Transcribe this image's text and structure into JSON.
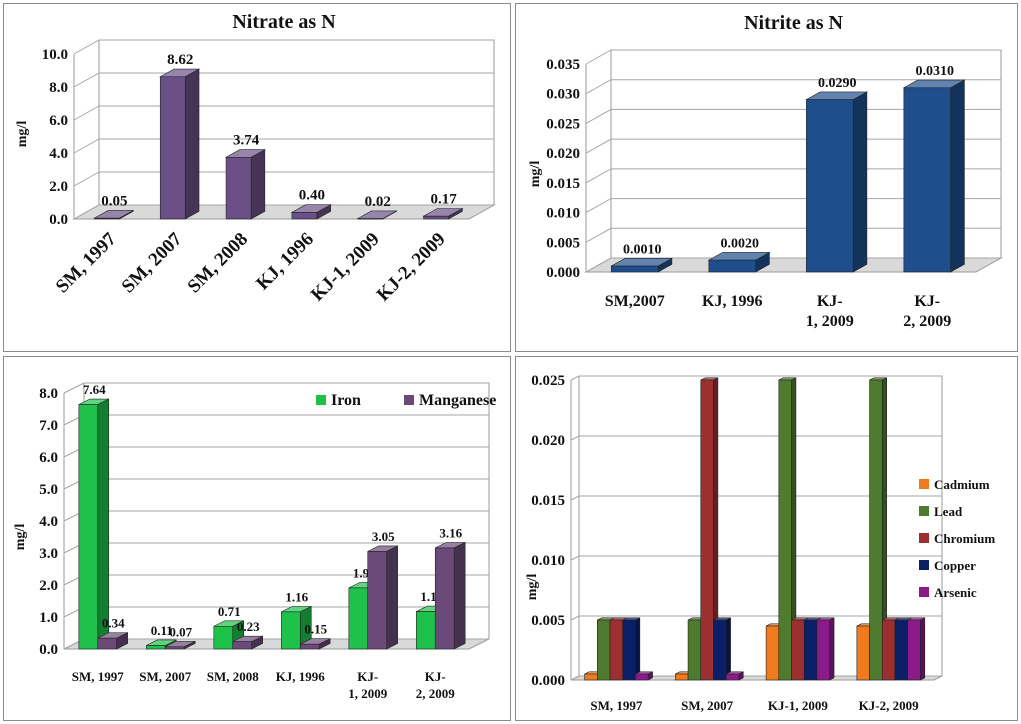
{
  "chart_data": [
    {
      "type": "bar",
      "title": "Nitrate as N",
      "ylabel": "mg/l",
      "xlabel": "",
      "ylim": [
        0,
        10
      ],
      "yticks": [
        "0.0",
        "2.0",
        "4.0",
        "6.0",
        "8.0",
        "10.0"
      ],
      "categories": [
        "SM, 1997",
        "SM, 2007",
        "SM, 2008",
        "KJ, 1996",
        "KJ-1, 2009",
        "KJ-2, 2009"
      ],
      "series": [
        {
          "values": [
            0.05,
            8.62,
            3.74,
            0.4,
            0.02,
            0.17
          ],
          "labels": [
            "0.05",
            "8.62",
            "3.74",
            "0.40",
            "0.02",
            "0.17"
          ],
          "color": "#6b5088"
        }
      ],
      "grid": true,
      "legend": "none"
    },
    {
      "type": "bar",
      "title": "Nitrite as N",
      "ylabel": "mg/l",
      "xlabel": "",
      "ylim": [
        0,
        0.035
      ],
      "yticks": [
        "0.000",
        "0.005",
        "0.010",
        "0.015",
        "0.020",
        "0.025",
        "0.030",
        "0.035"
      ],
      "categories": [
        [
          "SM,2007"
        ],
        [
          "KJ, 1996"
        ],
        [
          "KJ-",
          "1, 2009"
        ],
        [
          "KJ-",
          "2, 2009"
        ]
      ],
      "series": [
        {
          "values": [
            0.001,
            0.002,
            0.029,
            0.031
          ],
          "labels": [
            "0.0010",
            "0.0020",
            "0.0290",
            "0.0310"
          ],
          "color": "#1f4e8c"
        }
      ],
      "grid": true,
      "legend": "none"
    },
    {
      "type": "bar",
      "title": "",
      "ylabel": "mg/l",
      "xlabel": "",
      "ylim": [
        0,
        8
      ],
      "yticks": [
        "0.0",
        "1.0",
        "2.0",
        "3.0",
        "4.0",
        "5.0",
        "6.0",
        "7.0",
        "8.0"
      ],
      "categories": [
        [
          "SM, 1997"
        ],
        [
          "SM, 2007"
        ],
        [
          "SM, 2008"
        ],
        [
          "KJ, 1996"
        ],
        [
          "KJ-",
          "1, 2009"
        ],
        [
          "KJ-",
          "2, 2009"
        ]
      ],
      "series": [
        {
          "name": "Iron",
          "values": [
            7.64,
            0.11,
            0.71,
            1.16,
            1.91,
            1.17
          ],
          "labels": [
            "7.64",
            "0.11",
            "0.71",
            "1.16",
            "1.91",
            "1.17"
          ],
          "color": "#1ec24a"
        },
        {
          "name": "Manganese",
          "values": [
            0.34,
            0.07,
            0.23,
            0.15,
            3.05,
            3.16
          ],
          "labels": [
            "0.34",
            "0.07",
            "0.23",
            "0.15",
            "3.05",
            "3.16"
          ],
          "color": "#6b4a7a"
        }
      ],
      "grid": true,
      "legend": "top-right"
    },
    {
      "type": "bar",
      "title": "",
      "ylabel": "mg/l",
      "xlabel": "",
      "ylim": [
        0,
        0.025
      ],
      "yticks": [
        "0.000",
        "0.005",
        "0.010",
        "0.015",
        "0.020",
        "0.025"
      ],
      "categories": [
        [
          "SM, 1997"
        ],
        [
          "SM, 2007"
        ],
        [
          "KJ-1, 2009"
        ],
        [
          "KJ-2, 2009"
        ]
      ],
      "series": [
        {
          "name": "Cadmium",
          "values": [
            0.0005,
            0.0005,
            0.0045,
            0.0045
          ],
          "color": "#f07b1e"
        },
        {
          "name": "Lead",
          "values": [
            0.005,
            0.005,
            0.025,
            0.025
          ],
          "color": "#4f7b2e"
        },
        {
          "name": "Chromium",
          "values": [
            0.005,
            0.025,
            0.005,
            0.005
          ],
          "color": "#9c3030"
        },
        {
          "name": "Copper",
          "values": [
            0.005,
            0.005,
            0.005,
            0.005
          ],
          "color": "#0b1f66"
        },
        {
          "name": "Arsenic",
          "values": [
            0.0005,
            0.0005,
            0.005,
            0.005
          ],
          "color": "#8b1a8b"
        }
      ],
      "grid": true,
      "legend": "right"
    }
  ]
}
